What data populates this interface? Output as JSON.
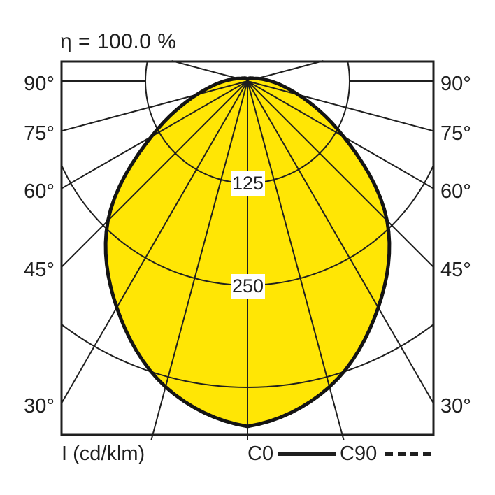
{
  "title": "η = 100.0 %",
  "colors": {
    "curve_fill": "#FFE605",
    "grid_line": "#1F1F1F",
    "curve_outline": "#141414",
    "text": "#1F1F1F",
    "background": "#FFFFFF",
    "ring_label_box": "#FFFFFF"
  },
  "axis": {
    "unit_label": "I (cd/klm)",
    "angle_label_values": [
      90,
      75,
      60,
      45,
      30
    ],
    "angle_labels": [
      "90°",
      "75°",
      "60°",
      "45°",
      "30°"
    ],
    "ring_values": [
      125,
      250,
      375
    ],
    "ring_label_texts": [
      "125",
      "250"
    ],
    "ray_angles_deg": [
      0,
      15,
      30,
      45,
      60,
      75,
      90,
      105
    ]
  },
  "legend": {
    "c0_label": "C0",
    "c90_label": "C90"
  },
  "chart_data": {
    "type": "polar_intensity",
    "title": "η = 100.0 %",
    "efficiency_percent": 100.0,
    "unit": "cd/klm",
    "gamma_deg": [
      0,
      15,
      30,
      45,
      60,
      75,
      90,
      105,
      120,
      135,
      150,
      165,
      180
    ],
    "series": [
      {
        "name": "C0",
        "style": "solid",
        "values": [
          420,
          385,
          318,
          240,
          135,
          64,
          28,
          12,
          7,
          5,
          4,
          3,
          2
        ]
      },
      {
        "name": "C90",
        "style": "dashed",
        "values": [
          420,
          385,
          318,
          240,
          135,
          64,
          28,
          12,
          7,
          5,
          4,
          3,
          2
        ]
      }
    ],
    "rings": [
      125,
      250,
      375
    ],
    "labeled_rings": [
      125,
      250
    ],
    "note": "C0 and C90 curves coincide in this diagram"
  }
}
